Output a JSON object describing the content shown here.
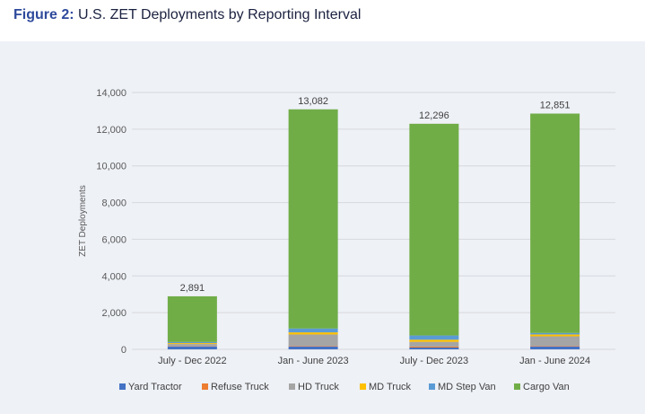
{
  "figure_label": "Figure 2:",
  "title": "U.S. ZET Deployments by Reporting Interval",
  "chart_data": {
    "type": "bar",
    "stacked": true,
    "categories": [
      "July - Dec 2022",
      "Jan - June 2023",
      "July - Dec 2023",
      "Jan - June 2024"
    ],
    "series": [
      {
        "name": "Yard Tractor",
        "color": "#4472c4",
        "values": [
          160,
          160,
          100,
          160
        ]
      },
      {
        "name": "Refuse Truck",
        "color": "#ed7d31",
        "values": [
          20,
          30,
          50,
          30
        ]
      },
      {
        "name": "HD Truck",
        "color": "#a5a5a5",
        "values": [
          110,
          620,
          260,
          520
        ]
      },
      {
        "name": "MD Truck",
        "color": "#ffc000",
        "values": [
          50,
          115,
          115,
          100
        ]
      },
      {
        "name": "MD Step Van",
        "color": "#5b9bd5",
        "values": [
          60,
          210,
          230,
          80
        ]
      },
      {
        "name": "Cargo Van",
        "color": "#70ad47",
        "values": [
          2491,
          11947,
          11541,
          11961
        ]
      }
    ],
    "totals": [
      "2,891",
      "13,082",
      "12,296",
      "12,851"
    ],
    "ylabel": "ZET Deployments",
    "ylim": [
      0,
      14000
    ],
    "yticks": [
      "0",
      "2,000",
      "4,000",
      "6,000",
      "8,000",
      "10,000",
      "12,000",
      "14,000"
    ],
    "grid": true,
    "legend": "bottom"
  }
}
